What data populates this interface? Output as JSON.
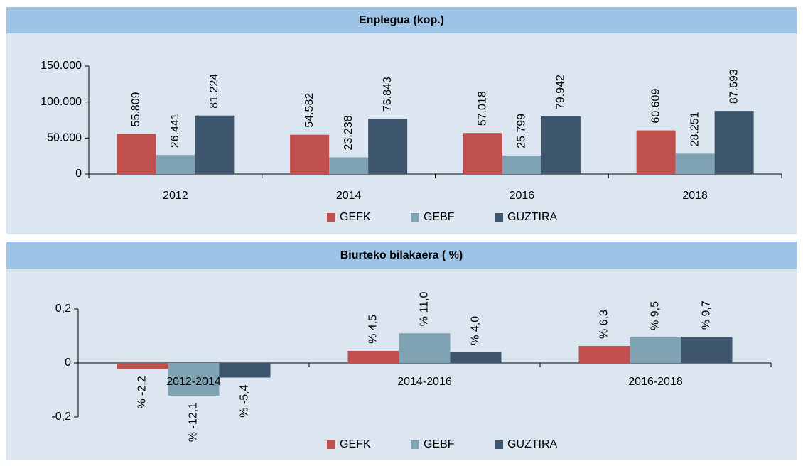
{
  "chart_data": [
    {
      "type": "bar",
      "title": "Enplegua (kop.)",
      "categories": [
        "2012",
        "2014",
        "2016",
        "2018"
      ],
      "series": [
        {
          "name": "GEFK",
          "color": "#c0504d",
          "values": [
            55809,
            54582,
            57018,
            60609
          ],
          "value_labels": [
            "55.809",
            "54.582",
            "57.018",
            "60.609"
          ]
        },
        {
          "name": "GEBF",
          "color": "#7fa3b3",
          "values": [
            26441,
            23238,
            25799,
            28251
          ],
          "value_labels": [
            "26.441",
            "23.238",
            "25.799",
            "28.251"
          ]
        },
        {
          "name": "GUZTIRA",
          "color": "#3d566e",
          "values": [
            81224,
            76843,
            79942,
            87693
          ],
          "value_labels": [
            "81.224",
            "76.843",
            "79.942",
            "87.693"
          ]
        }
      ],
      "ylim": [
        0,
        150000
      ],
      "yticks": [
        0,
        {
          "value": 50000,
          "label": "50.000"
        },
        {
          "value": 100000,
          "label": "100.000"
        },
        {
          "value": 150000,
          "label": "150.000"
        }
      ]
    },
    {
      "type": "bar",
      "title": "Biurteko bilakaera ( %)",
      "categories": [
        "2012-2014",
        "2014-2016",
        "2016-2018"
      ],
      "series": [
        {
          "name": "GEFK",
          "color": "#c0504d",
          "values": [
            -0.022,
            0.045,
            0.063
          ],
          "value_labels": [
            "% -2,2",
            "% 4,5",
            "% 6,3"
          ]
        },
        {
          "name": "GEBF",
          "color": "#7fa3b3",
          "values": [
            -0.121,
            0.11,
            0.095
          ],
          "value_labels": [
            "% -12,1",
            "% 11,0",
            "% 9,5"
          ]
        },
        {
          "name": "GUZTIRA",
          "color": "#3d566e",
          "values": [
            -0.054,
            0.04,
            0.097
          ],
          "value_labels": [
            "% -5,4",
            "% 4,0",
            "% 9,7"
          ]
        }
      ],
      "ylim": [
        -0.2,
        0.2
      ],
      "yticks": [
        {
          "value": -0.2,
          "label": "-0,2"
        },
        0,
        {
          "value": 0.2,
          "label": "0,2"
        }
      ]
    }
  ]
}
